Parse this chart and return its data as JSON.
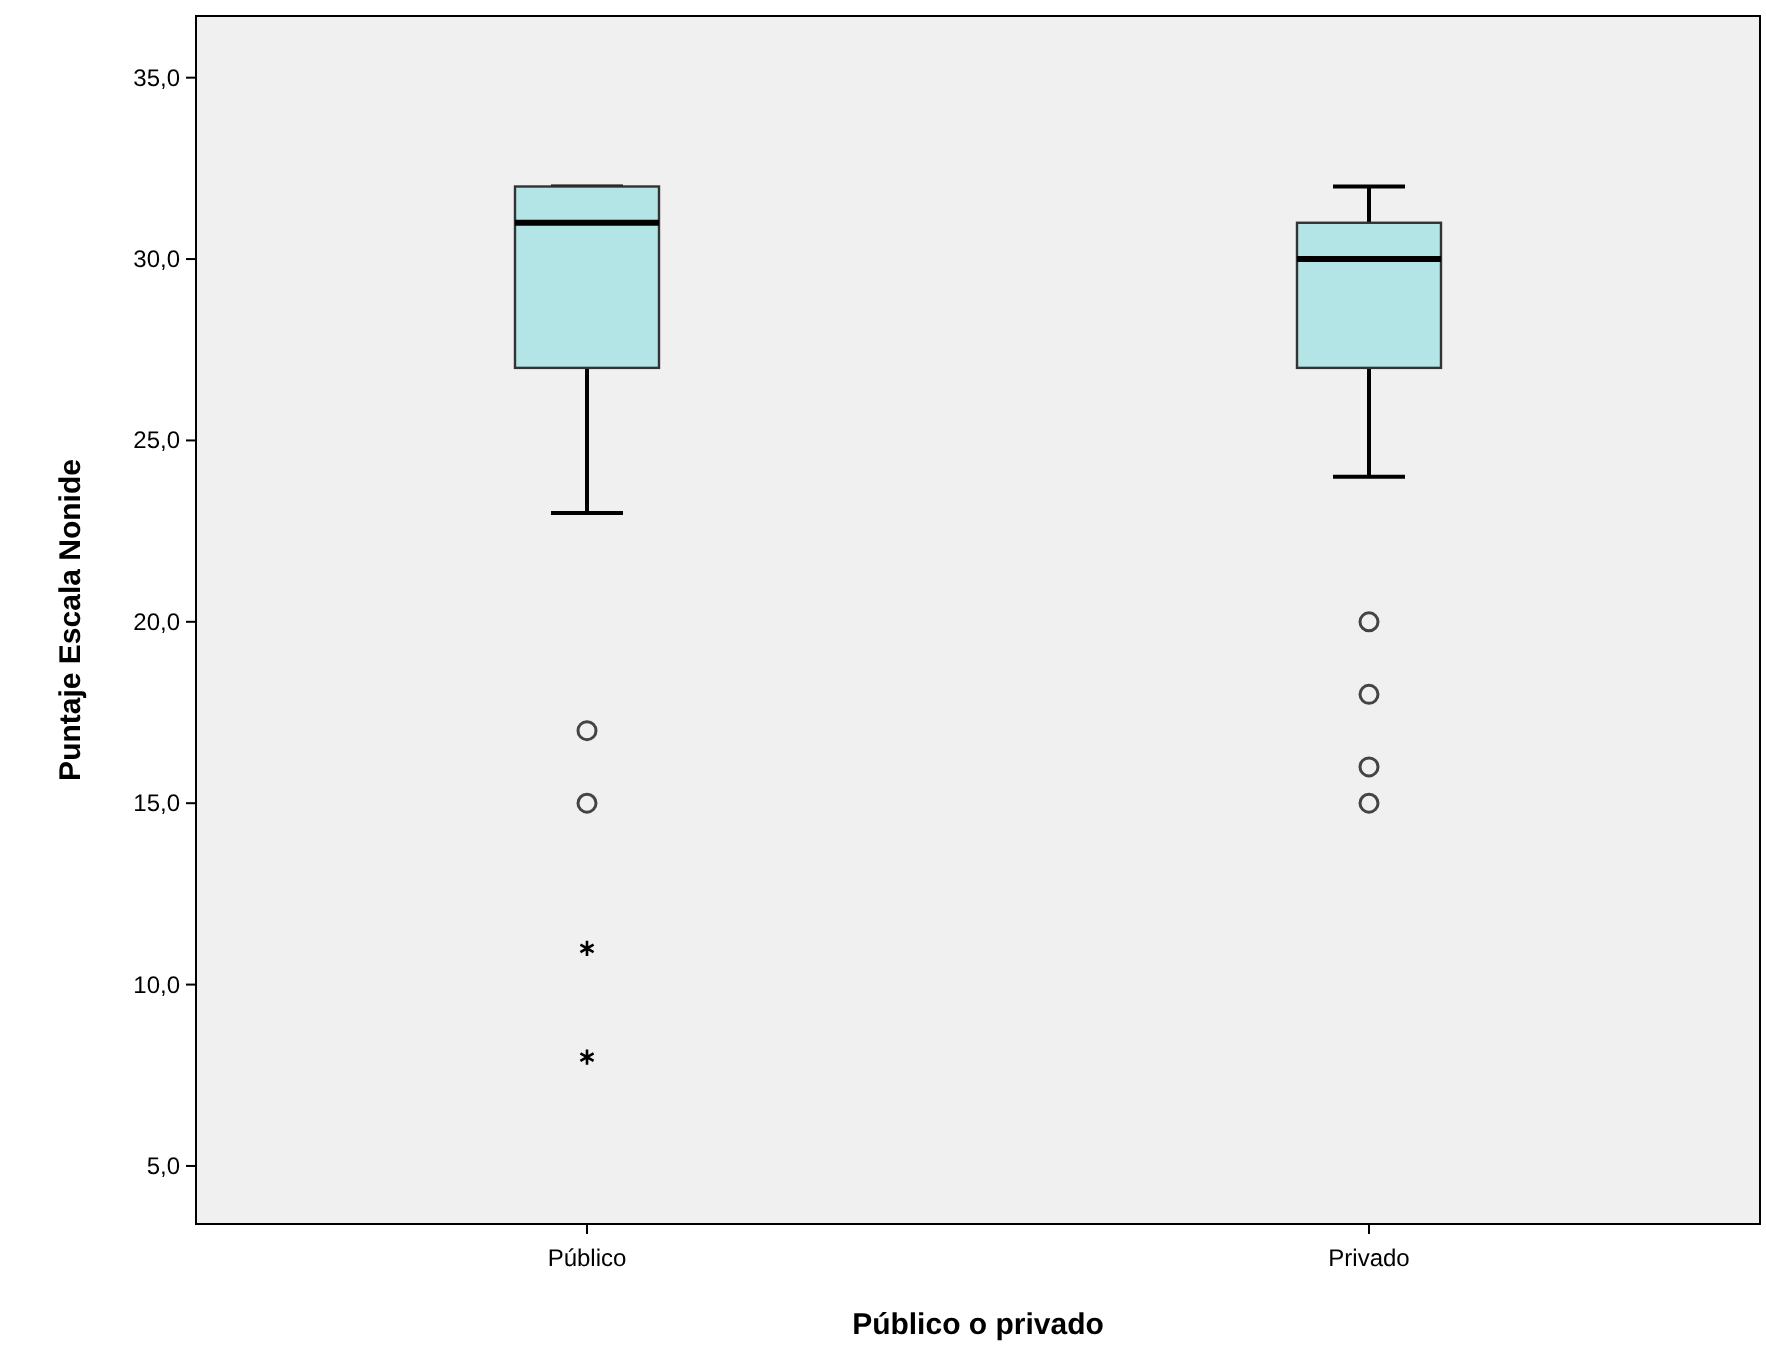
{
  "chart_data": {
    "type": "box",
    "xlabel": "Público o privado",
    "ylabel": "Puntaje Escala Nonide",
    "categories": [
      "Público",
      "Privado"
    ],
    "color": "#b4e5e6",
    "ylim": [
      3.4,
      36.7
    ],
    "yticks": [
      {
        "value": 5,
        "label": "5,0"
      },
      {
        "value": 10,
        "label": "10,0"
      },
      {
        "value": 15,
        "label": "15,0"
      },
      {
        "value": 20,
        "label": "20,0"
      },
      {
        "value": 25,
        "label": "25,0"
      },
      {
        "value": 30,
        "label": "30,0"
      },
      {
        "value": 35,
        "label": "35,0"
      }
    ],
    "grid": false,
    "boxes": [
      {
        "low": 23,
        "q1": 27,
        "median": 31,
        "q3": 32,
        "high": 32,
        "outliers": [
          17,
          15,
          11,
          8
        ]
      },
      {
        "low": 24,
        "q1": 27,
        "median": 30,
        "q3": 31,
        "high": 32,
        "outliers": [
          20,
          18,
          16,
          15
        ]
      }
    ]
  }
}
